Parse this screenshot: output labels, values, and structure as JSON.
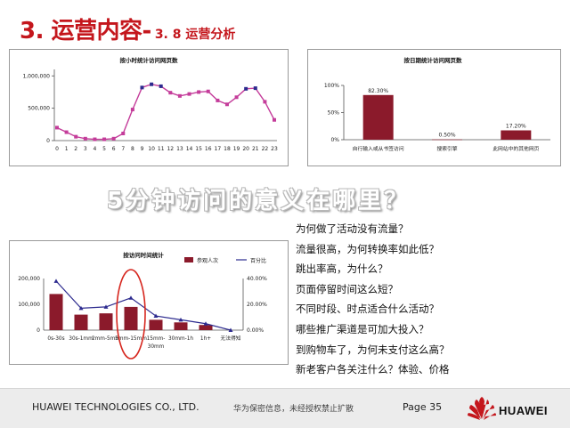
{
  "title": {
    "main": "3. 运营内容-",
    "sub": "3. 8  运营分析"
  },
  "slogan": "5分钟访问的意义在哪里？",
  "questions": [
    "为何做了活动没有流量？",
    "流量很高，为何转换率如此低？",
    "跳出率高，为什么？",
    "页面停留时间这么短？",
    "不同时段、时点适合什么活动？",
    "哪些推广渠道是可加大投入？",
    "到购物车了，为何未支付这么高？",
    "新老客户各关注什么？体验、价格",
    "……"
  ],
  "footer": {
    "company": "HUAWEI TECHNOLOGIES CO., LTD.",
    "notice": "华为保密信息，未经授权禁止扩散",
    "page": "Page 35",
    "brand": "HUAWEI",
    "brand_color": "#c4161c"
  },
  "chart_data": [
    {
      "type": "line",
      "title": "按小时统计访问网页数",
      "x": [
        "0",
        "1",
        "2",
        "3",
        "4",
        "5",
        "6",
        "7",
        "8",
        "9",
        "10",
        "11",
        "12",
        "13",
        "14",
        "15",
        "16",
        "17",
        "18",
        "19",
        "20",
        "21",
        "22",
        "23"
      ],
      "series": [
        {
          "values": [
            200000,
            130000,
            60000,
            30000,
            20000,
            20000,
            30000,
            110000,
            480000,
            820000,
            870000,
            840000,
            740000,
            690000,
            720000,
            750000,
            760000,
            620000,
            560000,
            670000,
            800000,
            810000,
            600000,
            320000
          ]
        }
      ],
      "yticks": [
        "0",
        "500,000",
        "1,000,000"
      ],
      "ylim": [
        0,
        1100000
      ],
      "color": "#c43c9a",
      "highlight_color": "#2c2a8e",
      "highlighted_points": [
        9,
        10,
        11,
        20,
        21
      ]
    },
    {
      "type": "bar",
      "title": "按日期统计访问网页数",
      "categories": [
        "自行输入或从书签访问",
        "搜索引擎",
        "此网站中的其他网页"
      ],
      "values": [
        82.3,
        0.5,
        17.2
      ],
      "value_labels": [
        "82.30%",
        "0.50%",
        "17.20%"
      ],
      "yticks": [
        "0%",
        "50%",
        "100%"
      ],
      "ylim": [
        0,
        100
      ],
      "color": "#8b1a2b"
    },
    {
      "type": "bar",
      "title": "按访问时间统计",
      "categories": [
        "0s-30s",
        "30s-1mm",
        "2mm-5mm",
        "5mm-15mm",
        "15mm-30mm",
        "30mm-1h",
        "1h+",
        "无法得知"
      ],
      "series": [
        {
          "name": "参观人次",
          "type": "bar",
          "values": [
            140000,
            60000,
            65000,
            90000,
            40000,
            30000,
            20000,
            0
          ],
          "color": "#8b1a2b"
        },
        {
          "name": "百分比",
          "type": "line",
          "values": [
            38,
            17,
            18,
            25,
            11,
            8,
            5,
            0
          ],
          "color": "#2c2a8e"
        }
      ],
      "yticks_left": [
        "0",
        "100,000",
        "200,000"
      ],
      "yticks_right": [
        "0.00%",
        "20.00%",
        "40.00%"
      ],
      "ylim": [
        0,
        200000
      ],
      "ylim_right": [
        0,
        40
      ],
      "highlighted_category": "5mm-15mm",
      "highlight_color": "#d6261e"
    }
  ]
}
